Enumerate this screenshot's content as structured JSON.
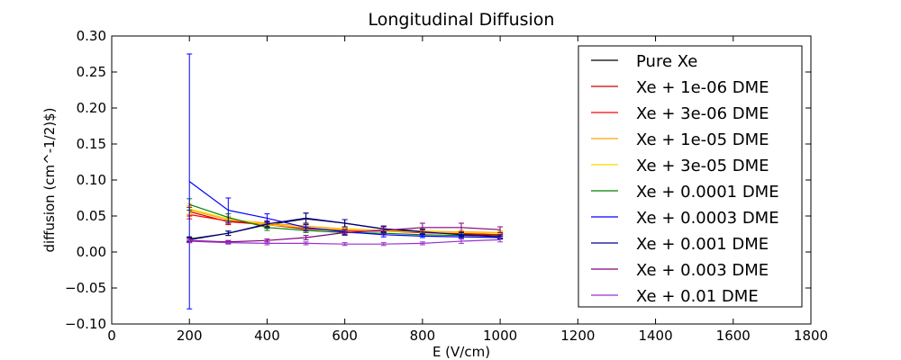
{
  "chart_data": {
    "type": "line",
    "title": "Longitudinal Diffusion",
    "xlabel": "E (V/cm)",
    "ylabel": "diffusion (cm^-1/2)$)",
    "xlim": [
      0,
      1800
    ],
    "ylim": [
      -0.1,
      0.3
    ],
    "xticks": [
      0,
      200,
      400,
      600,
      800,
      1000,
      1200,
      1400,
      1600,
      1800
    ],
    "xtick_labels": [
      "0",
      "200",
      "400",
      "600",
      "800",
      "1000",
      "1200",
      "1400",
      "1600",
      "1800"
    ],
    "yticks": [
      -0.1,
      -0.05,
      0.0,
      0.05,
      0.1,
      0.15,
      0.2,
      0.25,
      0.3
    ],
    "ytick_labels": [
      "−0.10",
      "−0.05",
      "0.00",
      "0.05",
      "0.10",
      "0.15",
      "0.20",
      "0.25",
      "0.30"
    ],
    "grid": false,
    "legend_position": "top-right",
    "x": [
      200,
      300,
      400,
      500,
      600,
      700,
      800,
      900,
      1000
    ],
    "series": [
      {
        "name": "Pure Xe",
        "color": "#000000",
        "values": [
          0.018,
          0.026,
          0.038,
          0.046,
          0.04,
          0.032,
          0.029,
          0.025,
          0.022
        ],
        "errors": [
          0.003,
          0.003,
          0.005,
          0.008,
          0.005,
          0.004,
          0.003,
          0.003,
          0.003
        ]
      },
      {
        "name": "Xe + 1e-06 DME",
        "color": "#cc0000",
        "values": [
          0.056,
          0.042,
          0.038,
          0.032,
          0.03,
          0.029,
          0.027,
          0.025,
          0.024
        ],
        "errors": [
          0.006,
          0.004,
          0.003,
          0.003,
          0.003,
          0.003,
          0.002,
          0.002,
          0.002
        ]
      },
      {
        "name": "Xe + 3e-06 DME",
        "color": "#ff0000",
        "values": [
          0.052,
          0.043,
          0.039,
          0.033,
          0.03,
          0.029,
          0.027,
          0.026,
          0.024
        ],
        "errors": [
          0.006,
          0.004,
          0.003,
          0.003,
          0.003,
          0.003,
          0.002,
          0.002,
          0.002
        ]
      },
      {
        "name": "Xe + 1e-05 DME",
        "color": "#ffa500",
        "values": [
          0.058,
          0.045,
          0.04,
          0.036,
          0.032,
          0.03,
          0.029,
          0.028,
          0.027
        ],
        "errors": [
          0.006,
          0.004,
          0.003,
          0.003,
          0.003,
          0.003,
          0.002,
          0.002,
          0.002
        ]
      },
      {
        "name": "Xe + 3e-05 DME",
        "color": "#ffd700",
        "values": [
          0.06,
          0.046,
          0.038,
          0.034,
          0.031,
          0.029,
          0.028,
          0.027,
          0.026
        ],
        "errors": [
          0.007,
          0.004,
          0.003,
          0.003,
          0.003,
          0.003,
          0.002,
          0.002,
          0.002
        ]
      },
      {
        "name": "Xe + 0.0001 DME",
        "color": "#008000",
        "values": [
          0.066,
          0.048,
          0.034,
          0.03,
          0.027,
          0.026,
          0.024,
          0.023,
          0.022
        ],
        "errors": [
          0.008,
          0.005,
          0.004,
          0.003,
          0.003,
          0.002,
          0.002,
          0.002,
          0.002
        ]
      },
      {
        "name": "Xe + 0.0003 DME",
        "color": "#0000ff",
        "values": [
          0.098,
          0.058,
          0.047,
          0.034,
          0.028,
          0.024,
          0.022,
          0.021,
          0.02
        ],
        "errors": [
          0.177,
          0.017,
          0.006,
          0.004,
          0.003,
          0.003,
          0.002,
          0.002,
          0.002
        ]
      },
      {
        "name": "Xe + 0.001 DME",
        "color": "#00008b",
        "values": [
          0.017,
          0.026,
          0.039,
          0.047,
          0.04,
          0.032,
          0.028,
          0.024,
          0.021
        ],
        "errors": [
          0.003,
          0.003,
          0.004,
          0.007,
          0.005,
          0.004,
          0.003,
          0.003,
          0.003
        ]
      },
      {
        "name": "Xe + 0.003 DME",
        "color": "#800080",
        "values": [
          0.016,
          0.014,
          0.016,
          0.02,
          0.027,
          0.03,
          0.034,
          0.034,
          0.031
        ],
        "errors": [
          0.003,
          0.002,
          0.002,
          0.003,
          0.004,
          0.005,
          0.006,
          0.006,
          0.004
        ]
      },
      {
        "name": "Xe + 0.01 DME",
        "color": "#9932cc",
        "values": [
          0.015,
          0.013,
          0.012,
          0.012,
          0.011,
          0.011,
          0.012,
          0.015,
          0.017
        ],
        "errors": [
          0.002,
          0.002,
          0.002,
          0.002,
          0.002,
          0.002,
          0.002,
          0.003,
          0.003
        ]
      }
    ]
  }
}
